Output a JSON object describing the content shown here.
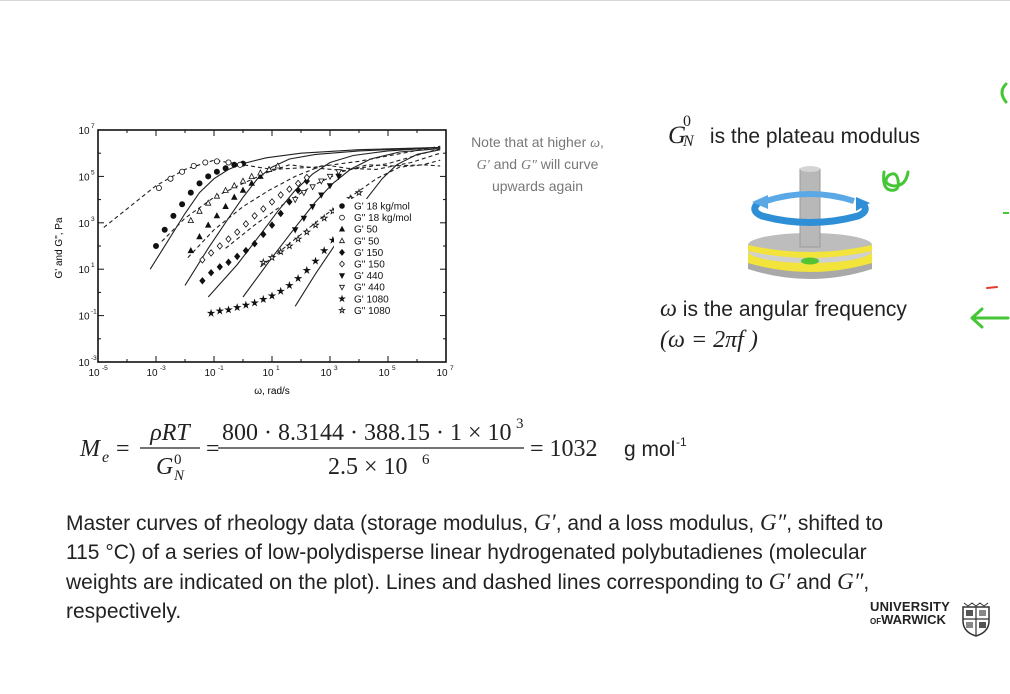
{
  "chart_data": {
    "type": "scatter",
    "title": "",
    "xlabel": "ω, rad/s",
    "ylabel": "G' and G\", Pa",
    "xscale": "log",
    "yscale": "log",
    "xlim_exp": [
      -5,
      7
    ],
    "ylim_exp": [
      -3,
      7
    ],
    "x_ticks": [
      {
        "exp": -5,
        "label": "10",
        "sup": "-5"
      },
      {
        "exp": -3,
        "label": "10",
        "sup": "-3"
      },
      {
        "exp": -1,
        "label": "10",
        "sup": "-1"
      },
      {
        "exp": 1,
        "label": "10",
        "sup": "1"
      },
      {
        "exp": 3,
        "label": "10",
        "sup": "3"
      },
      {
        "exp": 5,
        "label": "10",
        "sup": "5"
      },
      {
        "exp": 7,
        "label": "10",
        "sup": "7"
      }
    ],
    "y_ticks": [
      {
        "exp": -3,
        "label": "10",
        "sup": "-3"
      },
      {
        "exp": -1,
        "label": "10",
        "sup": "-1"
      },
      {
        "exp": 1,
        "label": "10",
        "sup": "1"
      },
      {
        "exp": 3,
        "label": "10",
        "sup": "3"
      },
      {
        "exp": 5,
        "label": "10",
        "sup": "5"
      },
      {
        "exp": 7,
        "label": "10",
        "sup": "7"
      }
    ],
    "legend_position": "center-right",
    "legend": [
      {
        "marker": "circle-filled",
        "label": "G' 18 kg/mol"
      },
      {
        "marker": "circle-open",
        "label": "G\" 18 kg/mol"
      },
      {
        "marker": "triangle-filled",
        "label": "G' 50"
      },
      {
        "marker": "triangle-open",
        "label": "G\" 50"
      },
      {
        "marker": "diamond-filled",
        "label": "G' 150"
      },
      {
        "marker": "diamond-open",
        "label": "G\" 150"
      },
      {
        "marker": "triangle-down-filled",
        "label": "G' 440"
      },
      {
        "marker": "triangle-down-open",
        "label": "G\" 440"
      },
      {
        "marker": "star-filled",
        "label": "G' 1080"
      },
      {
        "marker": "star-open",
        "label": "G\" 1080"
      }
    ],
    "series": [
      {
        "curve": "solid",
        "marker": "circle-filled",
        "points": [
          [
            -3.2,
            1.0
          ],
          [
            -2.6,
            2.2
          ],
          [
            -2.0,
            3.4
          ],
          [
            -1.5,
            4.3
          ],
          [
            -1.0,
            4.9
          ],
          [
            -0.5,
            5.3
          ],
          [
            0.0,
            5.55
          ],
          [
            0.8,
            5.8
          ],
          [
            2,
            6.0
          ],
          [
            4,
            6.15
          ],
          [
            6.8,
            6.25
          ]
        ]
      },
      {
        "curve": "dashed",
        "marker": "circle-open",
        "points": [
          [
            -4.8,
            2.8
          ],
          [
            -4.0,
            3.6
          ],
          [
            -3.0,
            4.6
          ],
          [
            -2.0,
            5.3
          ],
          [
            -1.0,
            5.7
          ],
          [
            0.0,
            5.5
          ],
          [
            1.0,
            5.3
          ],
          [
            2.5,
            5.4
          ],
          [
            4,
            5.65
          ],
          [
            5.5,
            6.0
          ],
          [
            6.8,
            6.3
          ]
        ]
      },
      {
        "curve": "solid",
        "marker": "triangle-filled",
        "points": [
          [
            -2.0,
            0.3
          ],
          [
            -1.2,
            1.9
          ],
          [
            -0.5,
            3.2
          ],
          [
            0.0,
            4.1
          ],
          [
            0.5,
            4.9
          ],
          [
            1.0,
            5.4
          ],
          [
            1.6,
            5.75
          ],
          [
            2.5,
            5.95
          ],
          [
            4,
            6.1
          ],
          [
            6.8,
            6.25
          ]
        ]
      },
      {
        "curve": "dashed",
        "marker": "triangle-open",
        "points": [
          [
            -2.8,
            2.2
          ],
          [
            -2.0,
            3.2
          ],
          [
            -1.0,
            4.1
          ],
          [
            0.0,
            4.7
          ],
          [
            0.8,
            5.15
          ],
          [
            1.6,
            5.5
          ],
          [
            2.6,
            5.35
          ],
          [
            3.5,
            5.25
          ],
          [
            5,
            5.55
          ],
          [
            6.8,
            6.2
          ]
        ]
      },
      {
        "curve": "solid",
        "marker": "diamond-filled",
        "points": [
          [
            -1.2,
            -0.2
          ],
          [
            -0.2,
            1.2
          ],
          [
            0.6,
            2.5
          ],
          [
            1.2,
            3.5
          ],
          [
            1.8,
            4.4
          ],
          [
            2.4,
            5.1
          ],
          [
            3.0,
            5.6
          ],
          [
            3.8,
            5.9
          ],
          [
            5,
            6.1
          ],
          [
            6.8,
            6.25
          ]
        ]
      },
      {
        "curve": "dashed",
        "marker": "diamond-open",
        "points": [
          [
            -1.9,
            1.5
          ],
          [
            -1.0,
            2.7
          ],
          [
            0.0,
            3.7
          ],
          [
            0.9,
            4.4
          ],
          [
            1.8,
            5.0
          ],
          [
            2.8,
            5.5
          ],
          [
            3.6,
            5.35
          ],
          [
            4.6,
            5.3
          ],
          [
            5.8,
            5.6
          ],
          [
            6.8,
            6.0
          ]
        ]
      },
      {
        "curve": "solid",
        "marker": "triangle-down-filled",
        "points": [
          [
            0.0,
            -0.2
          ],
          [
            1.0,
            1.5
          ],
          [
            1.8,
            2.8
          ],
          [
            2.5,
            3.9
          ],
          [
            3.1,
            4.7
          ],
          [
            3.7,
            5.3
          ],
          [
            4.4,
            5.75
          ],
          [
            5.4,
            6.05
          ],
          [
            6.8,
            6.2
          ]
        ]
      },
      {
        "curve": "dashed",
        "marker": "triangle-down-open",
        "points": [
          [
            -0.6,
            1.9
          ],
          [
            0.4,
            2.9
          ],
          [
            1.4,
            3.8
          ],
          [
            2.4,
            4.6
          ],
          [
            3.4,
            5.2
          ],
          [
            4.3,
            5.5
          ],
          [
            5.2,
            5.45
          ],
          [
            6.2,
            5.5
          ],
          [
            6.8,
            5.7
          ]
        ]
      },
      {
        "curve": "solid",
        "marker": "star-filled",
        "points": [
          [
            1.8,
            -0.6
          ],
          [
            2.5,
            0.8
          ],
          [
            3.2,
            2.1
          ],
          [
            3.8,
            3.2
          ],
          [
            4.3,
            4.1
          ],
          [
            4.8,
            4.9
          ],
          [
            5.3,
            5.5
          ],
          [
            6.0,
            5.95
          ],
          [
            6.8,
            6.15
          ]
        ]
      },
      {
        "curve": "dashed",
        "marker": "star-open",
        "points": [
          [
            0.6,
            1.1
          ],
          [
            1.8,
            2.3
          ],
          [
            2.8,
            3.3
          ],
          [
            3.8,
            4.2
          ],
          [
            4.6,
            4.9
          ],
          [
            5.4,
            5.4
          ],
          [
            6.2,
            5.5
          ],
          [
            6.8,
            5.45
          ]
        ]
      }
    ],
    "marker_data": [
      {
        "marker": "circle-filled",
        "points": [
          [
            -3.0,
            2.0
          ],
          [
            -2.7,
            2.7
          ],
          [
            -2.4,
            3.3
          ],
          [
            -2.1,
            3.8
          ],
          [
            -1.8,
            4.3
          ],
          [
            -1.5,
            4.7
          ],
          [
            -1.2,
            5.0
          ],
          [
            -0.9,
            5.2
          ],
          [
            -0.6,
            5.35
          ],
          [
            -0.3,
            5.5
          ],
          [
            0.0,
            5.55
          ]
        ]
      },
      {
        "marker": "circle-open",
        "points": [
          [
            -2.9,
            4.5
          ],
          [
            -2.5,
            4.9
          ],
          [
            -2.1,
            5.2
          ],
          [
            -1.7,
            5.45
          ],
          [
            -1.3,
            5.6
          ],
          [
            -0.9,
            5.65
          ],
          [
            -0.5,
            5.6
          ],
          [
            -0.1,
            5.5
          ]
        ]
      },
      {
        "marker": "triangle-filled",
        "points": [
          [
            -1.8,
            1.8
          ],
          [
            -1.5,
            2.4
          ],
          [
            -1.2,
            2.9
          ],
          [
            -0.9,
            3.3
          ],
          [
            -0.6,
            3.7
          ],
          [
            -0.3,
            4.1
          ],
          [
            0.0,
            4.4
          ],
          [
            0.3,
            4.7
          ],
          [
            0.6,
            5.0
          ],
          [
            0.9,
            5.3
          ]
        ]
      },
      {
        "marker": "triangle-open",
        "points": [
          [
            -1.8,
            3.1
          ],
          [
            -1.5,
            3.5
          ],
          [
            -1.2,
            3.85
          ],
          [
            -0.9,
            4.15
          ],
          [
            -0.6,
            4.4
          ],
          [
            -0.3,
            4.6
          ],
          [
            0.0,
            4.8
          ],
          [
            0.3,
            5.0
          ],
          [
            0.6,
            5.15
          ],
          [
            0.9,
            5.3
          ],
          [
            1.2,
            5.45
          ]
        ]
      },
      {
        "marker": "diamond-filled",
        "points": [
          [
            -1.4,
            0.5
          ],
          [
            -1.1,
            0.85
          ],
          [
            -0.8,
            1.1
          ],
          [
            -0.5,
            1.3
          ],
          [
            -0.2,
            1.55
          ],
          [
            0.1,
            1.8
          ],
          [
            0.4,
            2.1
          ],
          [
            0.7,
            2.5
          ],
          [
            1.0,
            2.9
          ],
          [
            1.3,
            3.4
          ],
          [
            1.6,
            3.9
          ],
          [
            1.9,
            4.4
          ],
          [
            2.2,
            4.8
          ]
        ]
      },
      {
        "marker": "diamond-open",
        "points": [
          [
            -1.4,
            1.4
          ],
          [
            -1.1,
            1.7
          ],
          [
            -0.8,
            2.0
          ],
          [
            -0.5,
            2.3
          ],
          [
            -0.2,
            2.6
          ],
          [
            0.1,
            2.95
          ],
          [
            0.4,
            3.3
          ],
          [
            0.7,
            3.6
          ],
          [
            1.0,
            3.9
          ],
          [
            1.3,
            4.2
          ],
          [
            1.6,
            4.45
          ],
          [
            1.9,
            4.7
          ],
          [
            2.2,
            4.95
          ]
        ]
      },
      {
        "marker": "triangle-down-filled",
        "points": [
          [
            1.8,
            2.7
          ],
          [
            2.1,
            3.2
          ],
          [
            2.4,
            3.7
          ],
          [
            2.7,
            4.2
          ],
          [
            3.0,
            4.6
          ],
          [
            3.3,
            5.0
          ]
        ]
      },
      {
        "marker": "triangle-down-open",
        "points": [
          [
            1.8,
            4.0
          ],
          [
            2.1,
            4.3
          ],
          [
            2.4,
            4.55
          ],
          [
            2.7,
            4.8
          ],
          [
            3.0,
            5.0
          ],
          [
            3.3,
            5.2
          ]
        ]
      },
      {
        "marker": "star-filled",
        "points": [
          [
            -1.1,
            -0.9
          ],
          [
            -0.8,
            -0.8
          ],
          [
            -0.5,
            -0.75
          ],
          [
            -0.2,
            -0.65
          ],
          [
            0.1,
            -0.55
          ],
          [
            0.4,
            -0.45
          ],
          [
            0.7,
            -0.3
          ],
          [
            1.0,
            -0.15
          ],
          [
            1.3,
            0.05
          ],
          [
            1.6,
            0.3
          ],
          [
            1.9,
            0.6
          ],
          [
            2.2,
            0.95
          ],
          [
            2.5,
            1.35
          ],
          [
            2.8,
            1.8
          ],
          [
            3.1,
            2.25
          ],
          [
            3.4,
            2.75
          ],
          [
            3.7,
            3.2
          ]
        ]
      },
      {
        "marker": "star-open",
        "points": [
          [
            0.7,
            1.3
          ],
          [
            1.0,
            1.5
          ],
          [
            1.3,
            1.75
          ],
          [
            1.6,
            2.0
          ],
          [
            1.9,
            2.3
          ],
          [
            2.2,
            2.6
          ],
          [
            2.5,
            2.9
          ],
          [
            2.8,
            3.2
          ],
          [
            3.1,
            3.5
          ],
          [
            3.4,
            3.8
          ],
          [
            3.7,
            4.05
          ],
          [
            4.0,
            4.3
          ]
        ]
      }
    ]
  },
  "note": {
    "prefix": "Note that at higher ",
    "omega": "ω",
    "suffix": ",",
    "line2_a": "G′",
    "line2_b": " and ",
    "line2_c": "G″",
    "line2_d": " will curve",
    "line3": "upwards again"
  },
  "plateau": {
    "symbol": "G",
    "sup": "0",
    "sub": "N",
    "text": " is the plateau modulus"
  },
  "omega_desc": {
    "symbol": "ω",
    "text": " is the angular frequency",
    "formula": "(ω = 2πf )"
  },
  "equation": {
    "lhs": "M",
    "lhs_sub": "e",
    "frac1_num": "ρRT",
    "frac1_den_sym": "G",
    "frac1_den_sup": "0",
    "frac1_den_sub": "N",
    "frac2_num": "800 · 8.3144 · 388.15 · 1 × 10",
    "frac2_num_sup": "3",
    "frac2_den": "2.5 × 10",
    "frac2_den_sup": "6",
    "result": "= 1032",
    "unit": "g mol",
    "unit_sup": "-1"
  },
  "caption": {
    "p1": "Master curves of rheology data (storage modulus, ",
    "g1": "G′",
    "p2": ", and a loss modulus, ",
    "g2": "G″",
    "p3": ", shifted to 115 °C) of a series of low-polydisperse linear hydrogenated polybutadienes (molecular weights are indicated on the plot). Lines and dashed lines corresponding to ",
    "g3": "G′",
    "p4": " and ",
    "g4": "G″",
    "p5": ", respectively."
  },
  "logo": {
    "line1": "UNIVERSITY",
    "line2_of": "OF",
    "line2": "WARWICK"
  },
  "colors": {
    "disc_yellow": "#f2e43a",
    "arrow_blue": "#2f8fd6",
    "gap_green": "#53c331",
    "annot_green": "#46c636",
    "annot_red": "#e23b2e"
  }
}
